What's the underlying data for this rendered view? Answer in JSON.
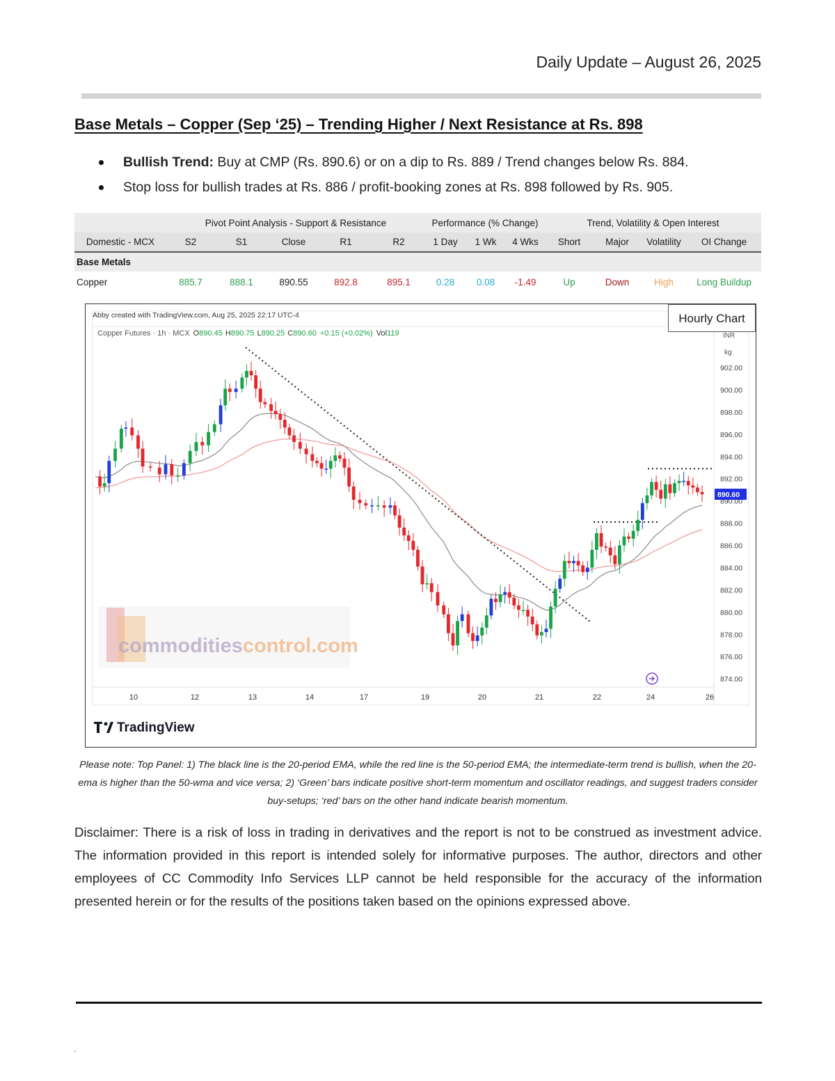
{
  "header": {
    "date_line": "Daily Update – August 26, 2025"
  },
  "title": "Base Metals – Copper (Sep   ‘25) – Trending Higher / Next Resistance at Rs. 898",
  "bullets": [
    {
      "bold": "Bullish Trend:",
      "text": " Buy at CMP (Rs. 890.6) or on a dip to Rs. 889 / Trend changes below Rs. 884."
    },
    {
      "bold": "",
      "text": "Stop loss for bullish trades at Rs. 886 / profit-booking zones at Rs. 898 followed by Rs. 905."
    }
  ],
  "table": {
    "groups": [
      "Pivot Point Analysis - Support & Resistance",
      "Performance (% Change)",
      "Trend, Volatility & Open Interest"
    ],
    "columns": [
      "Domestic - MCX",
      "S2",
      "S1",
      "Close",
      "R1",
      "R2",
      "1 Day",
      "1 Wk",
      "4 Wks",
      "Short",
      "Major",
      "Volatility",
      "OI Change"
    ],
    "section": "Base Metals",
    "row": {
      "name": "Copper",
      "s2": "885.7",
      "s1": "888.1",
      "close": "890.55",
      "r1": "892.8",
      "r2": "895.1",
      "d1": "0.28",
      "w1": "0.08",
      "w4": "-1.49",
      "short": "Up",
      "major": "Down",
      "volatility": "High",
      "oi": "Long Buildup"
    },
    "colors": {
      "green": "#2e9e4f",
      "red": "#c0262d",
      "cyan": "#29a8d6",
      "orange": "#f0a050",
      "darkred": "#a0161c"
    }
  },
  "chart": {
    "hourly_label": "Hourly Chart",
    "created_line": "Abby created with TradingView.com, Aug 25, 2025 22:17 UTC-4",
    "symbol_line": {
      "name": "Copper Futures · 1h · MCX",
      "o_label": "O",
      "o": "890.45",
      "h_label": "H",
      "h": "890.75",
      "l_label": "L",
      "l": "890.25",
      "c_label": "C",
      "c": "890.60",
      "chg": "+0.15 (+0.02%)",
      "vol_label": "Vol",
      "vol": "119"
    },
    "currency": "INR",
    "unit": "kg",
    "price_ticks": [
      "902.00",
      "900.00",
      "898.00",
      "896.00",
      "894.00",
      "892.00",
      "890.00",
      "888.00",
      "886.00",
      "884.00",
      "882.00",
      "880.00",
      "878.00",
      "876.00",
      "874.00"
    ],
    "last_price": "890.60",
    "date_ticks": [
      "10",
      "12",
      "13",
      "14",
      "17",
      "19",
      "20",
      "21",
      "22",
      "24",
      "26"
    ],
    "watermark": {
      "part1": "commodities",
      "part2": "control.com"
    },
    "brand": "TradingView",
    "colors": {
      "up": "#1aa34a",
      "down": "#e5262b",
      "up_alt": "#1f3fd6",
      "down_alt": "#e5262b",
      "ema20": "#9a9a9a",
      "ema50": "#f2a3a3",
      "tag": "#2030e0"
    }
  },
  "note": "Please note: Top Panel: 1) The black line is the 20-period EMA, while the red line is the 50-period EMA; the intermediate-term trend is bullish, when the 20-ema is higher than the 50-wma and vice versa; 2)  ‘Green’  bars indicate positive short-term momentum and oscillator readings, and suggest traders consider buy-setups;  ‘red’  bars on the other hand indicate bearish momentum.",
  "disclaimer": "Disclaimer: There is a risk of loss in trading in derivatives and the report is not to be construed as investment advice. The information provided in this report is intended solely for informative purposes. The author, directors and other employees of CC Commodity Info Services LLP cannot be held responsible for the accuracy of the information presented herein or for the results of the positions taken based on the opinions expressed above.",
  "footer_mark": "."
}
